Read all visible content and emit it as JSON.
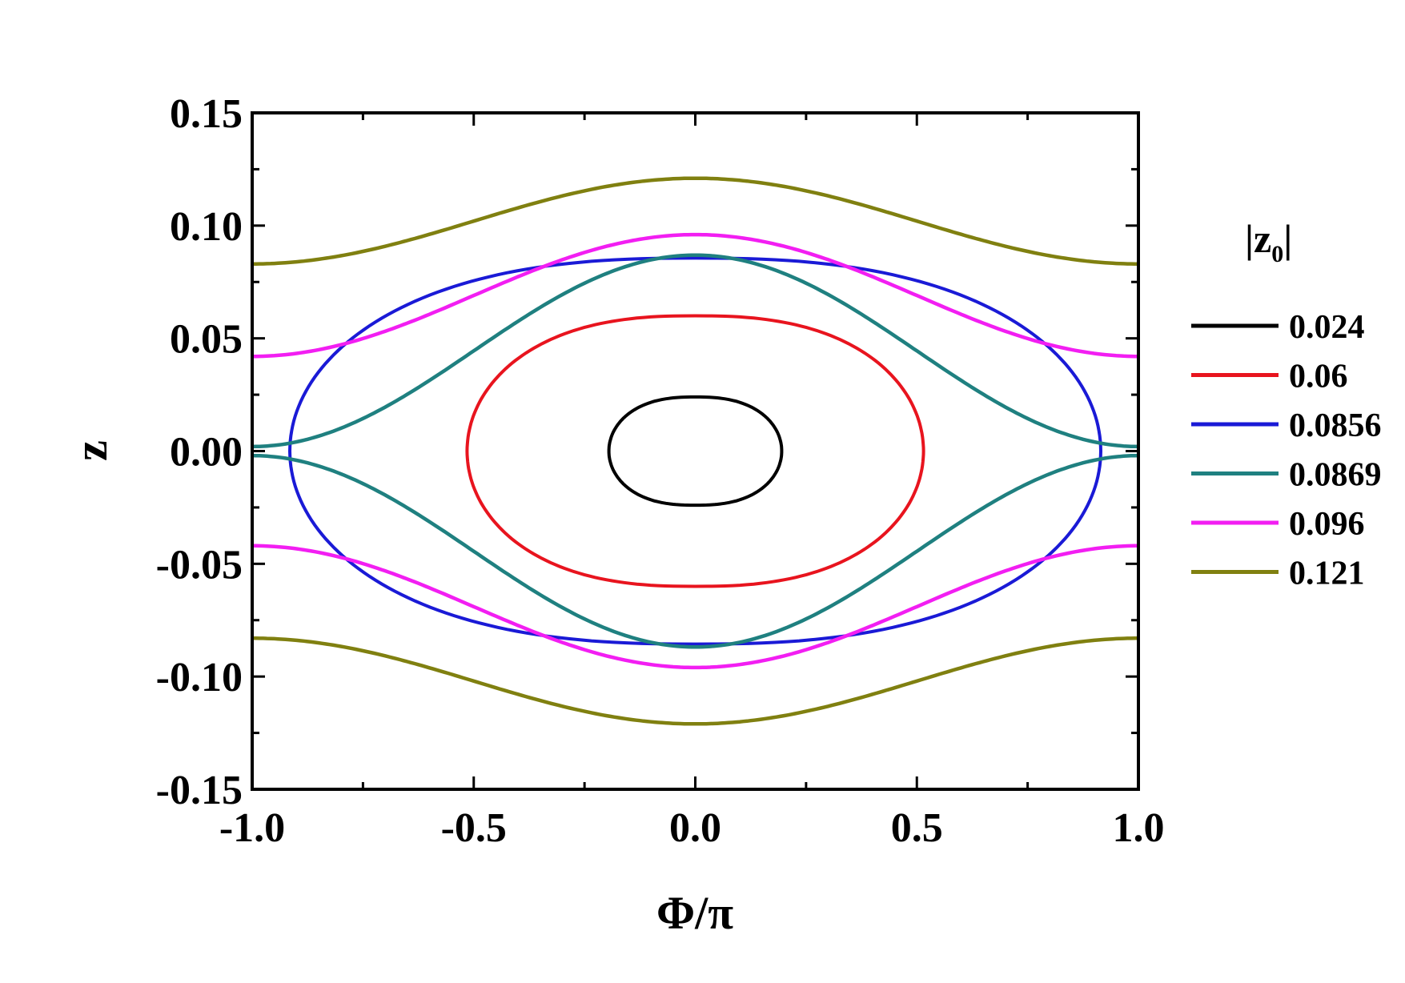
{
  "chart_data": {
    "type": "line",
    "title": "",
    "xlabel": "Φ/π",
    "ylabel": "z",
    "xlim": [
      -1.0,
      1.0
    ],
    "ylim": [
      -0.15,
      0.15
    ],
    "xticks": [
      -1.0,
      -0.5,
      0.0,
      0.5,
      1.0
    ],
    "xtick_labels": [
      "-1.0",
      "-0.5",
      "0.0",
      "0.5",
      "1.0"
    ],
    "yticks": [
      -0.15,
      -0.1,
      -0.05,
      0.0,
      0.05,
      0.1,
      0.15
    ],
    "ytick_labels": [
      "-0.15",
      "-0.10",
      "-0.05",
      "0.00",
      "0.05",
      "0.10",
      "0.15"
    ],
    "grid": false,
    "legend": {
      "title_main": "|z",
      "title_sub": "0",
      "title_end": "|",
      "placement": "right, outside plot"
    },
    "series": [
      {
        "name": "0.024",
        "color": "#000000",
        "kind": "closed",
        "amplitude": 0.024,
        "phase_extent": 0.195
      },
      {
        "name": "0.06",
        "color": "#e8141e",
        "kind": "closed",
        "amplitude": 0.06,
        "phase_extent": 0.515
      },
      {
        "name": "0.0856",
        "color": "#1a1ad6",
        "kind": "closed",
        "amplitude": 0.0856,
        "phase_extent": 0.915
      },
      {
        "name": "0.0869",
        "color": "#1f8080",
        "kind": "open",
        "amplitude": 0.0869,
        "edge_value": 0.002
      },
      {
        "name": "0.096",
        "color": "#f21ef2",
        "kind": "open",
        "amplitude": 0.096,
        "edge_value": 0.042
      },
      {
        "name": "0.121",
        "color": "#808010",
        "kind": "open",
        "amplitude": 0.121,
        "edge_value": 0.083
      }
    ]
  }
}
